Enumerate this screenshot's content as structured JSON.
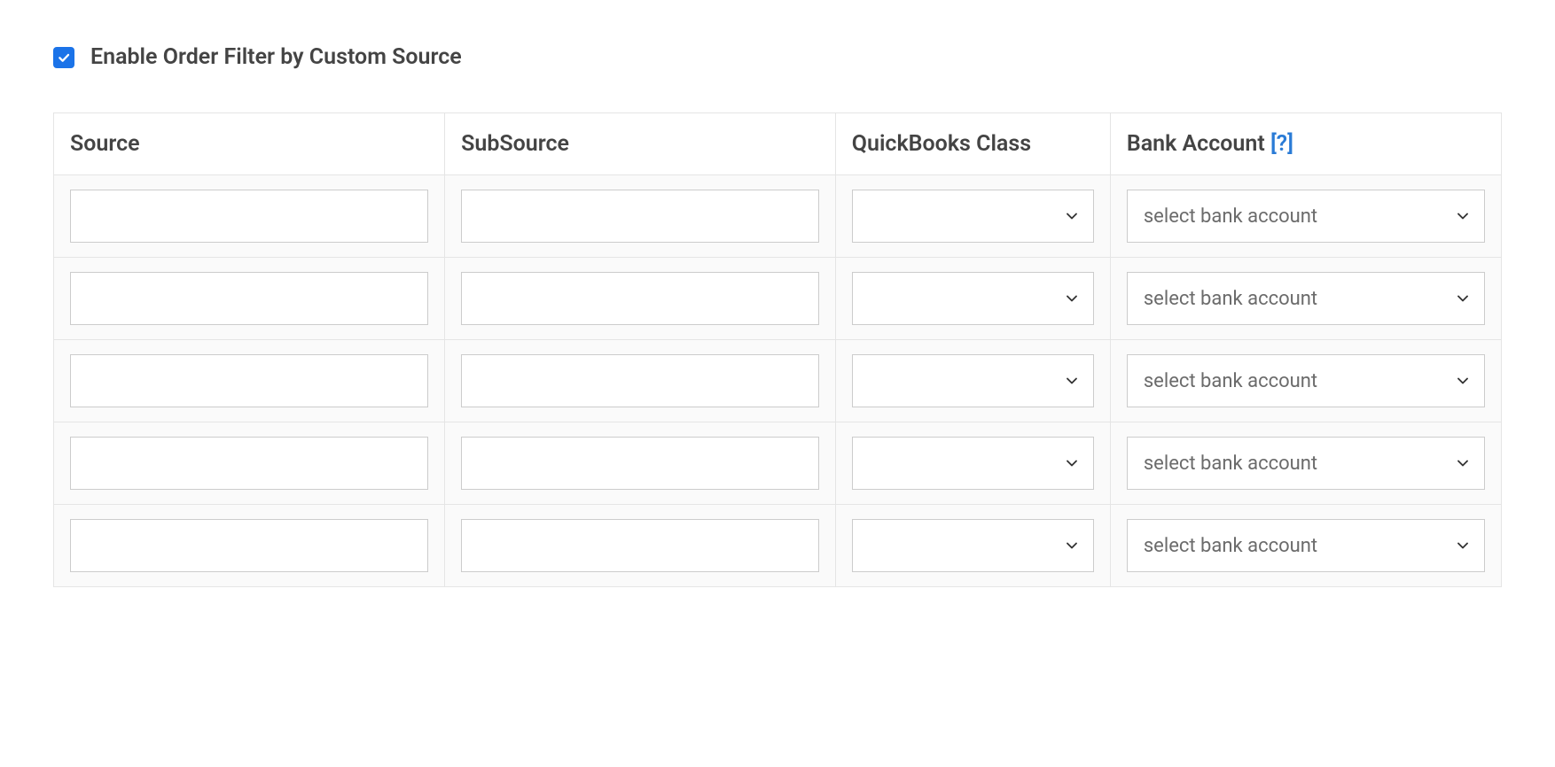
{
  "enable_filter": {
    "checked": true,
    "label": "Enable Order Filter by Custom Source",
    "checkbox_color": "#1b73e8",
    "check_color": "#ffffff"
  },
  "table": {
    "columns": {
      "source": "Source",
      "subsource": "SubSource",
      "quickbooks_class": "QuickBooks Class",
      "bank_account": "Bank Account",
      "bank_account_help": "[?]"
    },
    "bank_account_placeholder": "select bank account",
    "rows": [
      {
        "source": "",
        "subsource": "",
        "quickbooks_class": "",
        "bank_account": ""
      },
      {
        "source": "",
        "subsource": "",
        "quickbooks_class": "",
        "bank_account": ""
      },
      {
        "source": "",
        "subsource": "",
        "quickbooks_class": "",
        "bank_account": ""
      },
      {
        "source": "",
        "subsource": "",
        "quickbooks_class": "",
        "bank_account": ""
      },
      {
        "source": "",
        "subsource": "",
        "quickbooks_class": "",
        "bank_account": ""
      }
    ],
    "col_widths": {
      "source": "27%",
      "subsource": "27%",
      "class": "19%",
      "bank": "27%"
    }
  },
  "colors": {
    "text": "#444444",
    "border": "#e5e5e5",
    "input_border": "#cccccc",
    "row_bg": "#fafafa",
    "help_link": "#2a7bd6",
    "chevron": "#333333",
    "placeholder": "#6b6b6b"
  }
}
